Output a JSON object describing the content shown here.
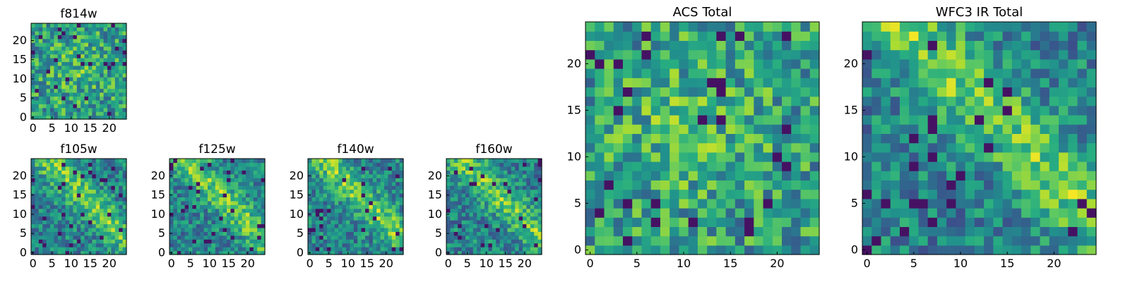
{
  "chart_data": [
    {
      "type": "heatmap",
      "title": "f814w",
      "grid_size": 25,
      "xticks": [
        "0",
        "5",
        "10",
        "15",
        "20"
      ],
      "yticks": [
        "0",
        "5",
        "10",
        "15",
        "20"
      ],
      "colormap": "viridis",
      "seed": 11,
      "pattern": "noise",
      "value_range": [
        0,
        1
      ]
    },
    {
      "type": "heatmap",
      "title": "f105w",
      "grid_size": 25,
      "xticks": [
        "0",
        "5",
        "10",
        "15",
        "20"
      ],
      "yticks": [
        "0",
        "5",
        "10",
        "15",
        "20"
      ],
      "colormap": "viridis",
      "seed": 23,
      "pattern": "diagonal-band",
      "value_range": [
        0,
        1
      ]
    },
    {
      "type": "heatmap",
      "title": "f125w",
      "grid_size": 25,
      "xticks": [
        "0",
        "5",
        "10",
        "15",
        "20"
      ],
      "yticks": [
        "0",
        "5",
        "10",
        "15",
        "20"
      ],
      "colormap": "viridis",
      "seed": 37,
      "pattern": "diagonal-band",
      "value_range": [
        0,
        1
      ]
    },
    {
      "type": "heatmap",
      "title": "f140w",
      "grid_size": 25,
      "xticks": [
        "0",
        "5",
        "10",
        "15",
        "20"
      ],
      "yticks": [
        "0",
        "5",
        "10",
        "15",
        "20"
      ],
      "colormap": "viridis",
      "seed": 41,
      "pattern": "diagonal-band",
      "value_range": [
        0,
        1
      ]
    },
    {
      "type": "heatmap",
      "title": "f160w",
      "grid_size": 25,
      "xticks": [
        "0",
        "5",
        "10",
        "15",
        "20"
      ],
      "yticks": [
        "0",
        "5",
        "10",
        "15",
        "20"
      ],
      "colormap": "viridis",
      "seed": 53,
      "pattern": "diagonal-band",
      "value_range": [
        0,
        1
      ]
    },
    {
      "type": "heatmap",
      "title": "ACS Total",
      "grid_size": 25,
      "xticks": [
        "0",
        "5",
        "10",
        "15",
        "20"
      ],
      "yticks": [
        "0",
        "5",
        "10",
        "15",
        "20"
      ],
      "colormap": "viridis",
      "seed": 67,
      "pattern": "noise",
      "value_range": [
        0,
        1
      ]
    },
    {
      "type": "heatmap",
      "title": "WFC3 IR Total",
      "grid_size": 25,
      "xticks": [
        "0",
        "5",
        "10",
        "15",
        "20"
      ],
      "yticks": [
        "0",
        "5",
        "10",
        "15",
        "20"
      ],
      "colormap": "viridis",
      "seed": 79,
      "pattern": "diagonal-band",
      "value_range": [
        0,
        1
      ]
    }
  ],
  "colors": {
    "axes_frame": "#000000",
    "background": "#ffffff"
  }
}
